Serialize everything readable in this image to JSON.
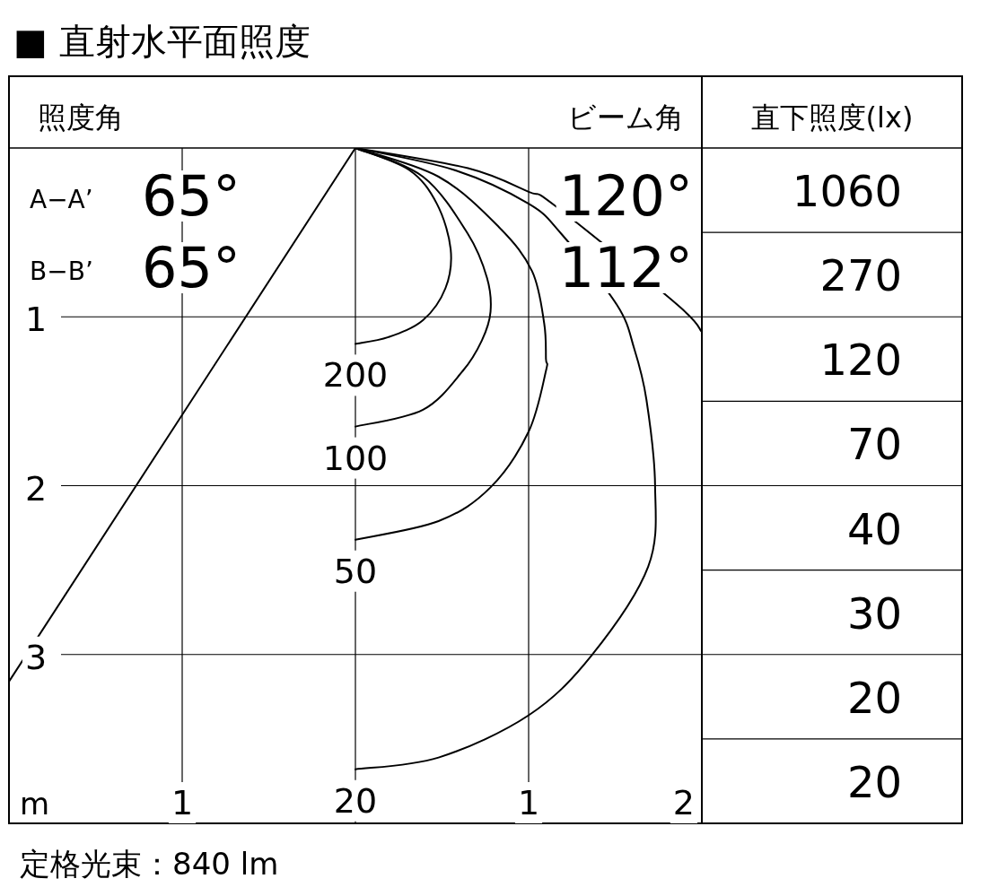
{
  "chart_data": [
    {
      "type": "line",
      "title": "■ 直射水平面照度",
      "xlabel": "m",
      "xlim": [
        -2,
        2
      ],
      "ylim": [
        4,
        0
      ],
      "xticks": [
        {
          "value": -1,
          "label": "1"
        },
        {
          "value": 0,
          "label": null
        },
        {
          "value": 1,
          "label": "1"
        },
        {
          "value": 2,
          "label": "2"
        }
      ],
      "yticks": [
        1,
        2,
        3
      ],
      "grid": true,
      "legend": false,
      "marker": "none",
      "line_style": "solid",
      "annotations": [
        "照度角",
        "ビーム角",
        "A−A’",
        "65°",
        "B−B’",
        "65°",
        "120°",
        "112°",
        "定格光束：840 lm"
      ],
      "series": [
        {
          "name": "200",
          "color": "#000000",
          "x": [
            0,
            0.31,
            0.47,
            0.55,
            0.52,
            0.39,
            0.19,
            0
          ],
          "values": [
            0,
            0.13,
            0.33,
            0.6,
            0.83,
            1.02,
            1.12,
            1.16
          ]
        },
        {
          "name": "100",
          "color": "#000000",
          "x": [
            0,
            0.39,
            0.65,
            0.76,
            0.78,
            0.73,
            0.62,
            0.39,
            0
          ],
          "values": [
            0,
            0.17,
            0.51,
            0.77,
            0.97,
            1.14,
            1.32,
            1.55,
            1.65
          ]
        },
        {
          "name": "50",
          "color": "#000000",
          "x": [
            0,
            0.48,
            0.83,
            1.02,
            1.09,
            1.1,
            1.1,
            1.0,
            0.78,
            0.48,
            0
          ],
          "values": [
            0,
            0.17,
            0.47,
            0.73,
            1.04,
            1.25,
            1.32,
            1.68,
            2.01,
            2.21,
            2.32
          ]
        },
        {
          "name": "20",
          "color": "#000000",
          "x": [
            0,
            0.57,
            1.0,
            1.19,
            1.51,
            1.61,
            1.68,
            1.73,
            1.69,
            1.36,
            1.0,
            0.48,
            0
          ],
          "values": [
            0,
            0.13,
            0.33,
            0.51,
            0.93,
            1.19,
            1.49,
            2.0,
            2.48,
            3.01,
            3.36,
            3.61,
            3.68
          ]
        },
        {
          "color": "#000000",
          "x": [
            0,
            0.65,
            1.0,
            1.15,
            1.86,
            2.0
          ],
          "values": [
            0,
            0.12,
            0.26,
            0.34,
            0.93,
            1.09
          ]
        },
        {
          "color": "#000000",
          "x": [
            0,
            -2.0
          ],
          "values": [
            0,
            3.16
          ]
        }
      ]
    },
    {
      "type": "other",
      "title": "直下照度(lx)",
      "values": [
        1060,
        270,
        120,
        70,
        40,
        30,
        20,
        20
      ],
      "data_labels": true
    }
  ]
}
